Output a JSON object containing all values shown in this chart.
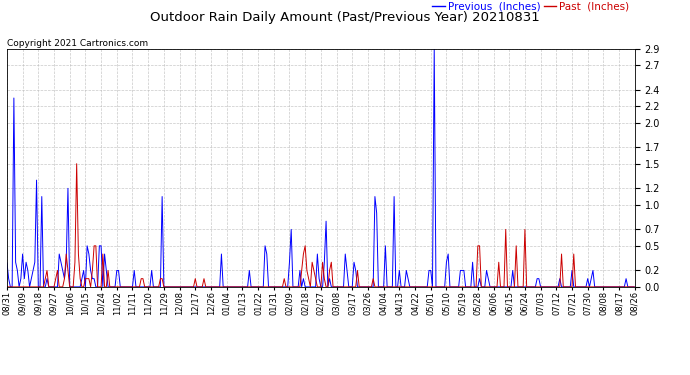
{
  "title": "Outdoor Rain Daily Amount (Past/Previous Year) 20210831",
  "copyright": "Copyright 2021 Cartronics.com",
  "legend_previous": "Previous  (Inches)",
  "legend_past": "Past  (Inches)",
  "ylim": [
    0.0,
    2.9
  ],
  "yticks": [
    0.0,
    0.2,
    0.5,
    0.7,
    1.0,
    1.2,
    1.5,
    1.7,
    2.0,
    2.2,
    2.4,
    2.7,
    2.9
  ],
  "color_previous": "#0000ff",
  "color_past": "#cc0000",
  "background_color": "#ffffff",
  "grid_color": "#bbbbbb",
  "title_color": "#000000",
  "copyright_color": "#000000",
  "xtick_labels": [
    "08/31",
    "09/09",
    "09/18",
    "09/27",
    "10/06",
    "10/15",
    "10/24",
    "11/02",
    "11/11",
    "11/20",
    "11/29",
    "12/08",
    "12/17",
    "12/26",
    "01/04",
    "01/13",
    "01/22",
    "01/31",
    "02/09",
    "02/18",
    "02/27",
    "03/08",
    "03/17",
    "03/26",
    "04/04",
    "04/13",
    "04/22",
    "05/01",
    "05/10",
    "05/19",
    "05/28",
    "06/06",
    "06/15",
    "06/24",
    "07/03",
    "07/12",
    "07/21",
    "07/30",
    "08/08",
    "08/17",
    "08/26"
  ],
  "previous_rain": [
    0.3,
    0.1,
    0.0,
    0.0,
    2.3,
    0.3,
    0.2,
    0.0,
    0.1,
    0.4,
    0.1,
    0.3,
    0.2,
    0.0,
    0.1,
    0.2,
    0.3,
    1.3,
    0.0,
    0.0,
    1.1,
    0.0,
    0.0,
    0.1,
    0.0,
    0.0,
    0.0,
    0.0,
    0.0,
    0.0,
    0.4,
    0.3,
    0.2,
    0.1,
    0.3,
    1.2,
    0.0,
    0.0,
    0.0,
    0.0,
    0.0,
    0.0,
    0.0,
    0.1,
    0.2,
    0.0,
    0.5,
    0.4,
    0.2,
    0.1,
    0.1,
    0.0,
    0.0,
    0.5,
    0.5,
    0.0,
    0.4,
    0.2,
    0.0,
    0.0,
    0.0,
    0.0,
    0.0,
    0.2,
    0.2,
    0.0,
    0.0,
    0.0,
    0.0,
    0.0,
    0.0,
    0.0,
    0.0,
    0.2,
    0.0,
    0.0,
    0.0,
    0.0,
    0.0,
    0.0,
    0.0,
    0.0,
    0.0,
    0.2,
    0.0,
    0.0,
    0.0,
    0.0,
    0.0,
    1.1,
    0.0,
    0.0,
    0.0,
    0.0,
    0.0,
    0.0,
    0.0,
    0.0,
    0.0,
    0.0,
    0.0,
    0.0,
    0.0,
    0.0,
    0.0,
    0.0,
    0.0,
    0.0,
    0.0,
    0.0,
    0.0,
    0.0,
    0.0,
    0.0,
    0.0,
    0.0,
    0.0,
    0.0,
    0.0,
    0.0,
    0.0,
    0.0,
    0.0,
    0.4,
    0.0,
    0.0,
    0.0,
    0.0,
    0.0,
    0.0,
    0.0,
    0.0,
    0.0,
    0.0,
    0.0,
    0.0,
    0.0,
    0.0,
    0.0,
    0.2,
    0.0,
    0.0,
    0.0,
    0.0,
    0.0,
    0.0,
    0.0,
    0.0,
    0.5,
    0.4,
    0.0,
    0.0,
    0.0,
    0.0,
    0.0,
    0.0,
    0.0,
    0.0,
    0.0,
    0.0,
    0.0,
    0.0,
    0.3,
    0.7,
    0.0,
    0.0,
    0.0,
    0.0,
    0.2,
    0.0,
    0.1,
    0.0,
    0.0,
    0.0,
    0.0,
    0.0,
    0.0,
    0.0,
    0.4,
    0.1,
    0.0,
    0.0,
    0.3,
    0.8,
    0.0,
    0.1,
    0.0,
    0.0,
    0.0,
    0.0,
    0.0,
    0.0,
    0.0,
    0.0,
    0.4,
    0.2,
    0.0,
    0.0,
    0.0,
    0.3,
    0.2,
    0.0,
    0.0,
    0.0,
    0.0,
    0.0,
    0.0,
    0.0,
    0.0,
    0.0,
    0.0,
    1.1,
    0.9,
    0.0,
    0.0,
    0.0,
    0.0,
    0.5,
    0.0,
    0.0,
    0.0,
    0.0,
    1.1,
    0.0,
    0.0,
    0.2,
    0.0,
    0.0,
    0.0,
    0.2,
    0.1,
    0.0,
    0.0,
    0.0,
    0.0,
    0.0,
    0.0,
    0.0,
    0.0,
    0.0,
    0.0,
    0.0,
    0.2,
    0.2,
    0.0,
    2.9,
    0.0,
    0.0,
    0.0,
    0.0,
    0.0,
    0.0,
    0.3,
    0.4,
    0.0,
    0.0,
    0.0,
    0.0,
    0.0,
    0.0,
    0.2,
    0.2,
    0.2,
    0.0,
    0.0,
    0.0,
    0.0,
    0.3,
    0.0,
    0.0,
    0.0,
    0.1,
    0.0,
    0.0,
    0.0,
    0.2,
    0.1,
    0.0,
    0.0,
    0.0,
    0.0,
    0.0,
    0.0,
    0.0,
    0.0,
    0.0,
    0.0,
    0.0,
    0.0,
    0.0,
    0.2,
    0.0,
    0.0,
    0.0,
    0.0,
    0.0,
    0.0,
    0.0,
    0.0,
    0.0,
    0.0,
    0.0,
    0.0,
    0.0,
    0.1,
    0.1,
    0.0,
    0.0,
    0.0,
    0.0,
    0.0,
    0.0,
    0.0,
    0.0,
    0.0,
    0.0,
    0.0,
    0.1,
    0.0,
    0.0,
    0.0,
    0.0,
    0.0,
    0.0,
    0.2,
    0.0,
    0.0,
    0.0,
    0.0,
    0.0,
    0.0,
    0.0,
    0.0,
    0.1,
    0.0,
    0.1,
    0.2,
    0.0,
    0.0,
    0.0,
    0.0,
    0.0,
    0.0,
    0.0,
    0.0,
    0.0,
    0.0,
    0.0,
    0.0,
    0.0,
    0.0,
    0.0,
    0.0,
    0.0,
    0.0,
    0.1,
    0.0,
    0.0,
    0.0,
    0.0,
    0.0
  ],
  "past_rain": [
    0.0,
    0.0,
    0.0,
    0.0,
    0.0,
    0.0,
    0.0,
    0.0,
    0.0,
    0.0,
    0.0,
    0.0,
    0.0,
    0.0,
    0.0,
    0.0,
    0.0,
    0.0,
    0.0,
    0.0,
    0.0,
    0.0,
    0.1,
    0.2,
    0.0,
    0.0,
    0.0,
    0.0,
    0.1,
    0.2,
    0.0,
    0.0,
    0.0,
    0.1,
    0.4,
    0.2,
    0.0,
    0.0,
    0.0,
    0.3,
    1.5,
    0.4,
    0.1,
    0.0,
    0.0,
    0.1,
    0.1,
    0.1,
    0.0,
    0.2,
    0.5,
    0.5,
    0.0,
    0.0,
    0.0,
    0.4,
    0.0,
    0.0,
    0.2,
    0.0,
    0.0,
    0.0,
    0.0,
    0.0,
    0.0,
    0.0,
    0.0,
    0.0,
    0.0,
    0.0,
    0.0,
    0.0,
    0.0,
    0.0,
    0.0,
    0.0,
    0.0,
    0.1,
    0.1,
    0.0,
    0.0,
    0.0,
    0.0,
    0.0,
    0.0,
    0.0,
    0.0,
    0.0,
    0.1,
    0.1,
    0.0,
    0.0,
    0.0,
    0.0,
    0.0,
    0.0,
    0.0,
    0.0,
    0.0,
    0.0,
    0.0,
    0.0,
    0.0,
    0.0,
    0.0,
    0.0,
    0.0,
    0.0,
    0.1,
    0.0,
    0.0,
    0.0,
    0.0,
    0.1,
    0.0,
    0.0,
    0.0,
    0.0,
    0.0,
    0.0,
    0.0,
    0.0,
    0.0,
    0.0,
    0.0,
    0.0,
    0.0,
    0.0,
    0.0,
    0.0,
    0.0,
    0.0,
    0.0,
    0.0,
    0.0,
    0.0,
    0.0,
    0.0,
    0.0,
    0.0,
    0.0,
    0.0,
    0.0,
    0.0,
    0.0,
    0.0,
    0.0,
    0.0,
    0.0,
    0.0,
    0.0,
    0.0,
    0.0,
    0.0,
    0.0,
    0.0,
    0.0,
    0.0,
    0.0,
    0.1,
    0.0,
    0.0,
    0.0,
    0.0,
    0.0,
    0.0,
    0.0,
    0.0,
    0.0,
    0.2,
    0.4,
    0.5,
    0.2,
    0.1,
    0.0,
    0.3,
    0.2,
    0.1,
    0.0,
    0.0,
    0.0,
    0.3,
    0.1,
    0.0,
    0.0,
    0.2,
    0.3,
    0.0,
    0.0,
    0.0,
    0.0,
    0.0,
    0.0,
    0.0,
    0.0,
    0.0,
    0.0,
    0.0,
    0.0,
    0.0,
    0.0,
    0.2,
    0.0,
    0.0,
    0.0,
    0.0,
    0.0,
    0.0,
    0.0,
    0.0,
    0.1,
    0.0,
    0.0,
    0.0,
    0.0,
    0.0,
    0.0,
    0.0,
    0.0,
    0.0,
    0.0,
    0.0,
    0.0,
    0.0,
    0.0,
    0.0,
    0.0,
    0.0,
    0.0,
    0.0,
    0.0,
    0.0,
    0.0,
    0.0,
    0.0,
    0.0,
    0.0,
    0.0,
    0.0,
    0.0,
    0.0,
    0.0,
    0.0,
    0.0,
    0.0,
    0.0,
    0.0,
    0.0,
    0.0,
    0.0,
    0.0,
    0.0,
    0.0,
    0.0,
    0.0,
    0.0,
    0.0,
    0.0,
    0.0,
    0.0,
    0.0,
    0.0,
    0.0,
    0.0,
    0.0,
    0.0,
    0.0,
    0.0,
    0.0,
    0.0,
    0.5,
    0.5,
    0.0,
    0.0,
    0.0,
    0.0,
    0.0,
    0.0,
    0.0,
    0.0,
    0.0,
    0.0,
    0.3,
    0.0,
    0.0,
    0.0,
    0.7,
    0.0,
    0.0,
    0.0,
    0.0,
    0.0,
    0.5,
    0.0,
    0.0,
    0.0,
    0.0,
    0.7,
    0.0,
    0.0,
    0.0,
    0.0,
    0.0,
    0.0,
    0.0,
    0.0,
    0.0,
    0.0,
    0.0,
    0.0,
    0.0,
    0.0,
    0.0,
    0.0,
    0.0,
    0.0,
    0.0,
    0.0,
    0.4,
    0.0,
    0.0,
    0.0,
    0.0,
    0.0,
    0.0,
    0.4,
    0.0,
    0.0,
    0.0,
    0.0,
    0.0,
    0.0,
    0.0,
    0.0,
    0.0,
    0.0,
    0.0,
    0.0,
    0.0,
    0.0,
    0.0,
    0.0,
    0.0,
    0.0,
    0.0,
    0.0,
    0.0,
    0.0,
    0.0,
    0.0,
    0.0,
    0.0,
    0.0,
    0.0,
    0.0,
    0.0,
    0.0,
    0.0,
    0.0,
    0.0,
    0.0
  ]
}
